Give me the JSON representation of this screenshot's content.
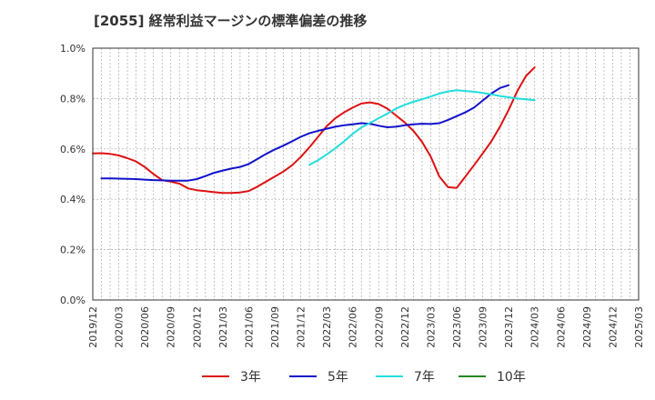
{
  "chart_data": {
    "type": "line",
    "title": "[2055]  経常利益マージンの標準偏差の推移",
    "x_ticks": [
      "2019/12",
      "2020/03",
      "2020/06",
      "2020/09",
      "2020/12",
      "2021/03",
      "2021/06",
      "2021/09",
      "2021/12",
      "2022/03",
      "2022/06",
      "2022/09",
      "2022/12",
      "2023/03",
      "2023/06",
      "2023/09",
      "2023/12",
      "2024/03",
      "2024/06",
      "2024/09",
      "2024/12",
      "2025/03"
    ],
    "y_ticks": [
      "0.0%",
      "0.2%",
      "0.4%",
      "0.6%",
      "0.8%",
      "1.0%"
    ],
    "ylim": [
      0,
      1.0
    ],
    "grid": true,
    "legend_position": "bottom",
    "series": [
      {
        "name": "3年",
        "color": "#dd1111",
        "start_index": 0,
        "values": [
          0.582,
          0.583,
          0.58,
          0.574,
          0.563,
          0.55,
          0.528,
          0.5,
          0.476,
          0.47,
          0.462,
          0.443,
          0.436,
          0.432,
          0.428,
          0.425,
          0.425,
          0.427,
          0.433,
          0.45,
          0.47,
          0.49,
          0.51,
          0.535,
          0.568,
          0.606,
          0.648,
          0.69,
          0.722,
          0.745,
          0.764,
          0.78,
          0.785,
          0.778,
          0.76,
          0.733,
          0.705,
          0.672,
          0.628,
          0.57,
          0.49,
          0.448,
          0.445,
          0.49,
          0.535,
          0.582,
          0.63,
          0.688,
          0.755,
          0.83,
          0.89,
          0.924
        ]
      },
      {
        "name": "5年",
        "color": "#1111cc",
        "start_index": 1,
        "values": [
          0.483,
          0.483,
          0.482,
          0.481,
          0.48,
          0.478,
          0.476,
          0.475,
          0.474,
          0.474,
          0.474,
          0.48,
          0.492,
          0.505,
          0.514,
          0.522,
          0.528,
          0.54,
          0.56,
          0.58,
          0.598,
          0.613,
          0.63,
          0.648,
          0.662,
          0.672,
          0.68,
          0.688,
          0.694,
          0.698,
          0.702,
          0.7,
          0.692,
          0.686,
          0.688,
          0.694,
          0.698,
          0.7,
          0.699,
          0.702,
          0.715,
          0.73,
          0.745,
          0.764,
          0.792,
          0.82,
          0.842,
          0.853
        ]
      },
      {
        "name": "7年",
        "color": "#22dddd",
        "start_index": 25,
        "values": [
          0.537,
          0.555,
          0.578,
          0.603,
          0.63,
          0.66,
          0.685,
          0.703,
          0.722,
          0.74,
          0.76,
          0.775,
          0.787,
          0.797,
          0.808,
          0.82,
          0.828,
          0.833,
          0.83,
          0.827,
          0.822,
          0.817,
          0.81,
          0.805,
          0.8,
          0.797,
          0.793
        ]
      },
      {
        "name": "10年",
        "color": "#228822",
        "start_index": 0,
        "values": []
      }
    ]
  }
}
